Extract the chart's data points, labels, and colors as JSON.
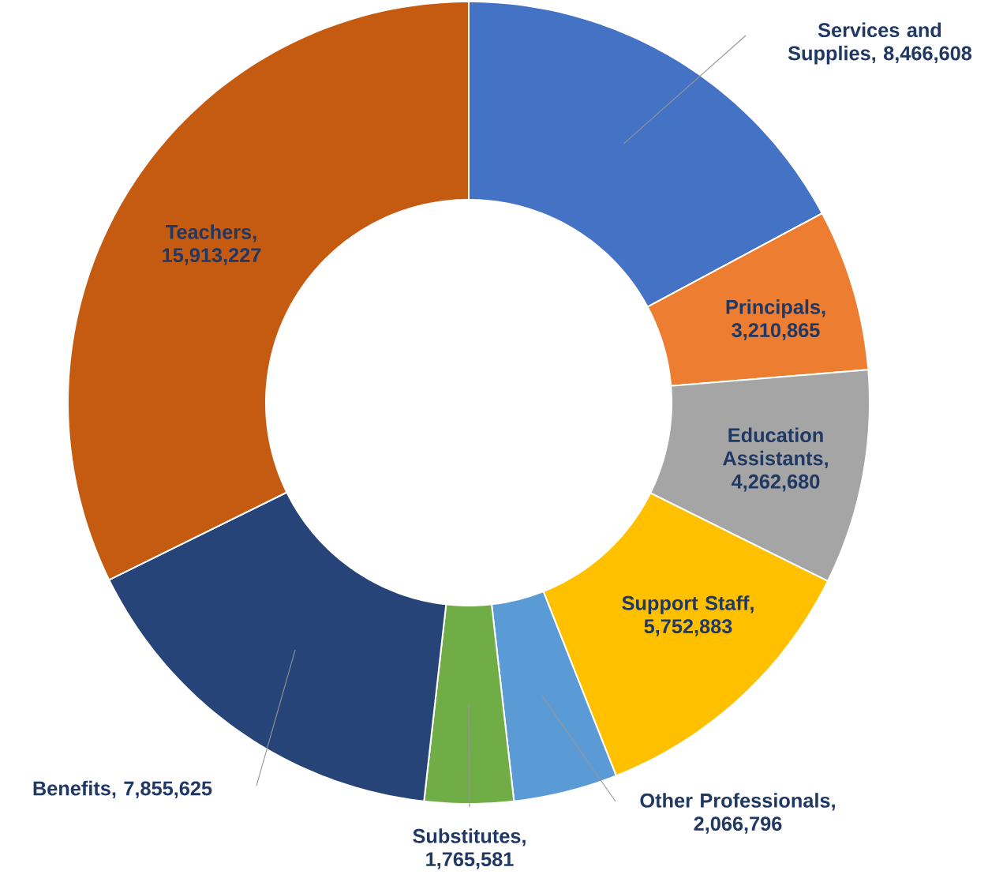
{
  "chart_data": {
    "type": "donut",
    "categories": [
      "Services and Supplies",
      "Principals",
      "Education Assistants",
      "Support Staff",
      "Other Professionals",
      "Substitutes",
      "Benefits",
      "Teachers"
    ],
    "values": [
      8466608,
      3210865,
      4262680,
      5752883,
      2066796,
      1765581,
      7855625,
      15913227
    ],
    "colors": [
      "#4472c4",
      "#ed7d31",
      "#a5a5a5",
      "#ffc000",
      "#5b9bd5",
      "#70ad47",
      "#264478",
      "#c55a11"
    ],
    "value_labels": [
      ", 8,466,608",
      ", 3,210,865",
      ", 4,262,680",
      ", 5,752,883",
      ", 2,066,796",
      ", 1,765,581",
      ", 7,855,625",
      ", 15,913,227"
    ]
  }
}
